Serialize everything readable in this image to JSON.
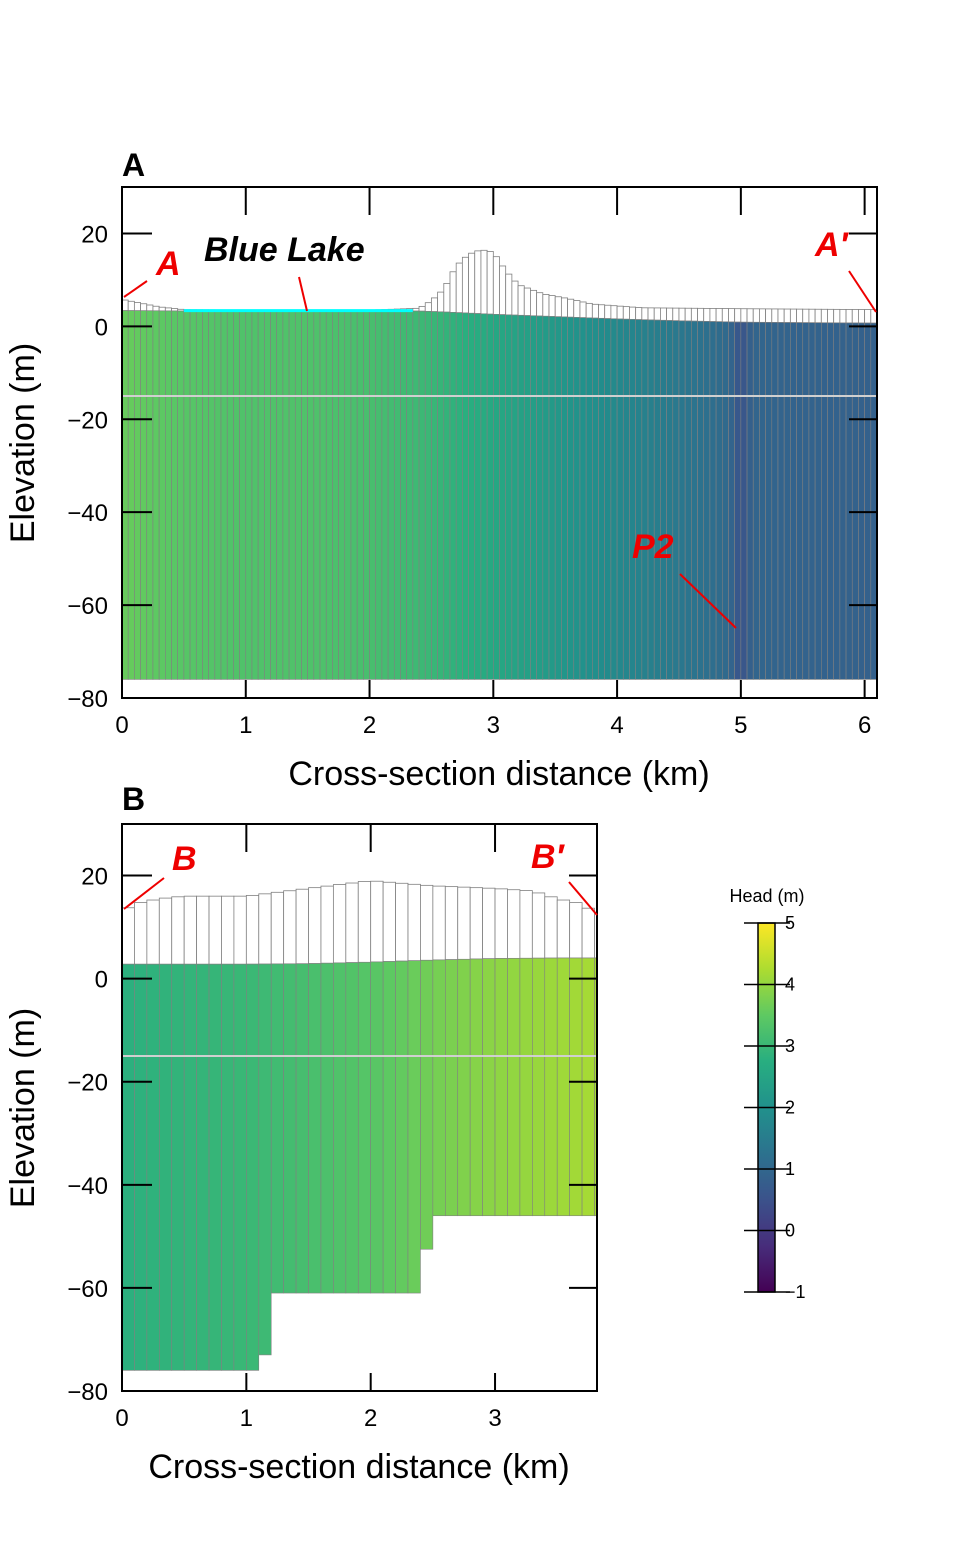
{
  "colors": {
    "annotation": "#ee0000",
    "lake": "#00ffff",
    "grid_line": "#808080",
    "colormap": "viridis"
  },
  "colorbar": {
    "title": "Head (m)",
    "min": -1,
    "max": 5,
    "ticks": [
      "5",
      "4",
      "3",
      "2",
      "1",
      "0",
      "−1"
    ]
  },
  "chart_data": [
    {
      "type": "heatmap",
      "panel_label": "A",
      "xlabel": "Cross-section distance (km)",
      "ylabel": "Elevation (m)",
      "xlim": [
        0,
        6.1
      ],
      "ylim": [
        -80,
        30
      ],
      "xticks": [
        "0",
        "1",
        "2",
        "3",
        "4",
        "5",
        "6"
      ],
      "yticks": [
        "20",
        "0",
        "−20",
        "−40",
        "−60",
        "−80"
      ],
      "annotations": {
        "start": "A",
        "end": "A′",
        "lake": "Blue Lake",
        "point": "P2"
      },
      "bottom_elevation": -76,
      "layer_boundaries": [
        -15
      ],
      "land_surface": {
        "x": [
          0,
          0.15,
          0.3,
          0.5,
          1.0,
          2.0,
          2.4,
          2.5,
          2.6,
          2.7,
          2.8,
          2.9,
          3.0,
          3.1,
          3.2,
          3.4,
          3.6,
          3.8,
          4.2,
          5.0,
          6.1
        ],
        "y": [
          5.8,
          5.0,
          4.2,
          3.6,
          3.5,
          3.5,
          3.9,
          5.5,
          8.0,
          13.0,
          15.5,
          16.5,
          16.0,
          12.0,
          9.0,
          7.0,
          6.0,
          4.8,
          4.0,
          3.8,
          3.6
        ]
      },
      "water_table": {
        "x": [
          0,
          0.5,
          1.0,
          2.0,
          2.4,
          2.6,
          3.0,
          3.5,
          4.0,
          4.5,
          5.0,
          5.5,
          6.1
        ],
        "y": [
          3.4,
          3.3,
          3.3,
          3.3,
          3.3,
          3.1,
          2.6,
          2.1,
          1.6,
          1.2,
          0.9,
          0.8,
          0.7
        ]
      },
      "lake_extent": {
        "x": [
          0.5,
          2.35
        ],
        "elevation": 3.4
      },
      "head": {
        "x": [
          0,
          0.5,
          1.0,
          1.5,
          2.0,
          2.5,
          3.0,
          3.5,
          4.0,
          4.5,
          4.9,
          5.0,
          5.1,
          5.5,
          6.1
        ],
        "values": [
          3.6,
          3.4,
          3.3,
          3.3,
          3.2,
          3.0,
          2.6,
          2.2,
          1.8,
          1.4,
          1.05,
          0.5,
          0.95,
          0.9,
          0.85
        ]
      }
    },
    {
      "type": "heatmap",
      "panel_label": "B",
      "xlabel": "Cross-section distance (km)",
      "ylabel": "Elevation (m)",
      "xlim": [
        0,
        3.82
      ],
      "ylim": [
        -80,
        30
      ],
      "xticks": [
        "0",
        "1",
        "2",
        "3"
      ],
      "yticks": [
        "20",
        "0",
        "−20",
        "−40",
        "−60",
        "−80"
      ],
      "annotations": {
        "start": "B",
        "end": "B′"
      },
      "layer_boundaries": [
        -15
      ],
      "land_surface": {
        "x": [
          0,
          0.1,
          0.3,
          0.5,
          1.0,
          1.5,
          2.0,
          2.5,
          3.0,
          3.3,
          3.5,
          3.7,
          3.82
        ],
        "y": [
          13.0,
          14.5,
          15.5,
          16.0,
          16.0,
          17.5,
          19.0,
          18.0,
          17.5,
          17.0,
          15.5,
          14.5,
          12.5
        ]
      },
      "water_table": {
        "x": [
          0,
          0.5,
          1.0,
          1.5,
          2.0,
          2.5,
          3.0,
          3.5,
          3.82
        ],
        "y": [
          2.8,
          2.8,
          2.8,
          2.9,
          3.2,
          3.6,
          3.9,
          4.0,
          4.0
        ]
      },
      "bottom_profile": {
        "x": [
          0,
          1.15,
          1.2,
          1.25,
          2.38,
          2.48,
          3.82
        ],
        "y": [
          -76,
          -73,
          -70,
          -61,
          -52.5,
          -46,
          -46
        ]
      },
      "head": {
        "x": [
          0,
          0.5,
          1.0,
          1.5,
          2.0,
          2.5,
          3.0,
          3.5,
          3.82
        ],
        "values": [
          2.8,
          2.9,
          3.0,
          3.2,
          3.4,
          3.7,
          3.95,
          4.1,
          4.2
        ]
      }
    }
  ]
}
